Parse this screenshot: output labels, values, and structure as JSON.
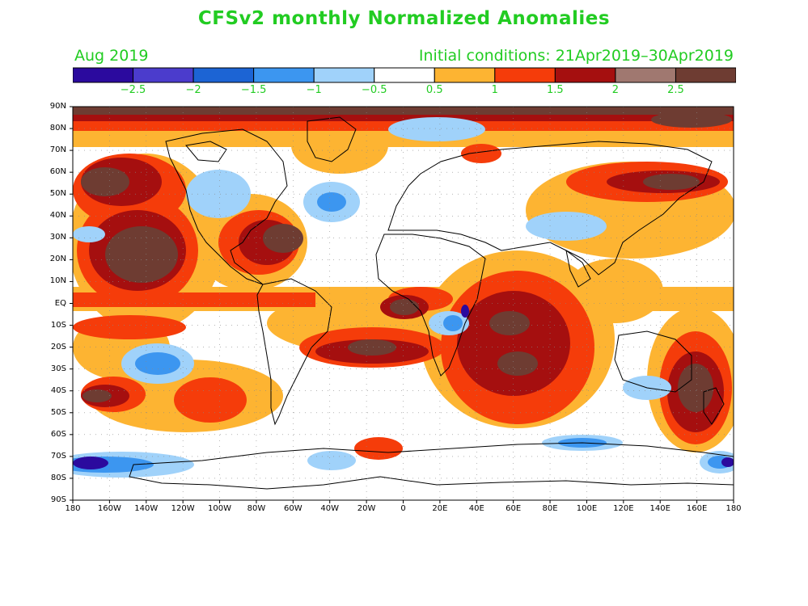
{
  "title": "CFSv2 monthly Normalized Anomalies",
  "month_label": "Aug 2019",
  "initial_conditions": "Initial conditions: 21Apr2019–30Apr2019",
  "colorbar": {
    "colors": [
      "#2b0a9e",
      "#4b3ccc",
      "#1c64d4",
      "#3c96f0",
      "#a0d2fa",
      "#ffffff",
      "#fdb432",
      "#f53c0a",
      "#a50f0f",
      "#a07870",
      "#6e3c32"
    ],
    "labels": [
      "−2.5",
      "−2",
      "−1.5",
      "−1",
      "−0.5",
      "0.5",
      "1",
      "1.5",
      "2",
      "2.5"
    ]
  },
  "map": {
    "lat_labels": [
      "90N",
      "80N",
      "70N",
      "60N",
      "50N",
      "40N",
      "30N",
      "20N",
      "10N",
      "EQ",
      "10S",
      "20S",
      "30S",
      "40S",
      "50S",
      "60S",
      "70S",
      "80S",
      "90S"
    ],
    "lon_labels": [
      "180",
      "160W",
      "140W",
      "120W",
      "100W",
      "80W",
      "60W",
      "40W",
      "20W",
      "0",
      "20E",
      "40E",
      "60E",
      "80E",
      "100E",
      "120E",
      "140E",
      "160E",
      "180"
    ],
    "lat_range": [
      -90,
      90
    ],
    "lon_range": [
      -180,
      180
    ]
  }
}
